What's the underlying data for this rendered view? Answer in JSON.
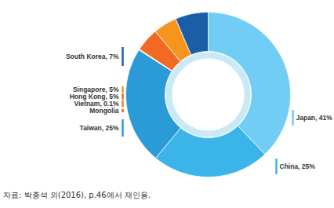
{
  "chart_data": {
    "type": "pie",
    "caption": "자료: 박종석 외(2016), p.46에서 재인용.",
    "categories": [
      "Japan",
      "China",
      "Taiwan",
      "Mongolia",
      "Vietnam",
      "Hong Kong",
      "Singapore",
      "South Korea"
    ],
    "values": [
      41,
      25,
      25,
      0.1,
      0.1,
      5,
      5,
      7
    ],
    "value_labels": [
      "Japan, 41%",
      "China, 25%",
      "Taiwan, 25%",
      "Mongolia",
      "Vietnam, 0.1%",
      "Hong Kong, 5%",
      "Singapore, 5%",
      "South Korea, 7%"
    ],
    "colors": [
      "#72cdf4",
      "#3bb4e9",
      "#2a9bd6",
      "#f15a24",
      "#f47a20",
      "#f26a22",
      "#f7941d",
      "#1b5ea8"
    ],
    "data_labels": true
  }
}
